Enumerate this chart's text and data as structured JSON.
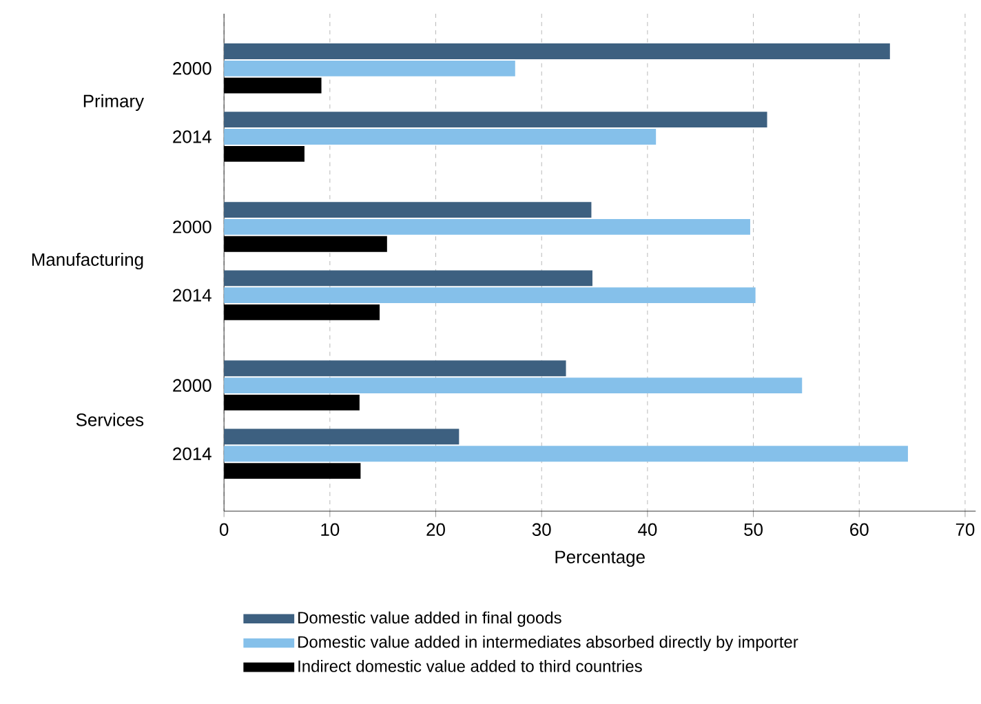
{
  "chart_data": {
    "type": "bar",
    "orientation": "horizontal",
    "xlabel": "Percentage",
    "categories": [
      "2000",
      "2014",
      "2000",
      "2014",
      "2000",
      "2014"
    ],
    "annotations": [
      "Primary",
      "Manufacturing",
      "Services"
    ],
    "series": [
      {
        "name": "Domestic value added in final goods",
        "color": "#3d6080",
        "values": [
          62.9,
          51.3,
          34.7,
          34.8,
          32.3,
          22.2
        ]
      },
      {
        "name": "Domestic value added in intermediates absorbed directly by importer",
        "color": "#85c0ea",
        "values": [
          27.5,
          40.8,
          49.7,
          50.2,
          54.6,
          64.6
        ]
      },
      {
        "name": "Indirect domestic value added to third countries",
        "color": "#000000",
        "values": [
          9.2,
          7.6,
          15.4,
          14.7,
          12.8,
          12.9
        ]
      }
    ],
    "xlim": [
      0,
      71
    ],
    "xticks": [
      0,
      10,
      20,
      30,
      40,
      50,
      60,
      70
    ],
    "grid": "x",
    "legend": "bottom"
  }
}
